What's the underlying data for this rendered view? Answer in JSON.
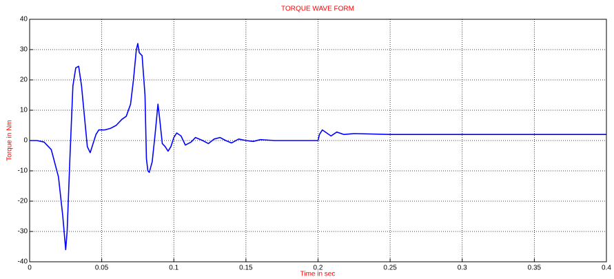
{
  "chart_data": {
    "type": "line",
    "title": "TORQUE WAVE FORM",
    "x_label": "Time in sec",
    "y_label": "Torque in Nm",
    "x": [
      0,
      0.005,
      0.01,
      0.015,
      0.02,
      0.023,
      0.025,
      0.026,
      0.028,
      0.03,
      0.032,
      0.034,
      0.036,
      0.038,
      0.04,
      0.042,
      0.044,
      0.046,
      0.048,
      0.052,
      0.056,
      0.06,
      0.064,
      0.067,
      0.07,
      0.072,
      0.074,
      0.075,
      0.076,
      0.078,
      0.08,
      0.081,
      0.082,
      0.083,
      0.085,
      0.087,
      0.089,
      0.09,
      0.092,
      0.094,
      0.096,
      0.098,
      0.1,
      0.102,
      0.105,
      0.108,
      0.112,
      0.115,
      0.12,
      0.124,
      0.128,
      0.132,
      0.136,
      0.14,
      0.145,
      0.15,
      0.155,
      0.16,
      0.17,
      0.18,
      0.19,
      0.2,
      0.201,
      0.203,
      0.206,
      0.209,
      0.213,
      0.218,
      0.225,
      0.25,
      0.3,
      0.35,
      0.4
    ],
    "values": [
      0,
      0,
      -0.5,
      -3,
      -12,
      -25,
      -36,
      -30,
      -5,
      18,
      24,
      24.5,
      18,
      8,
      -2,
      -4,
      -1,
      2,
      3.5,
      3.5,
      4,
      5,
      7,
      8,
      12,
      20,
      30,
      32,
      29,
      28,
      15,
      -6,
      -10,
      -10.5,
      -7,
      2,
      12,
      8,
      -1,
      -2,
      -3.5,
      -2,
      1,
      2.5,
      1.5,
      -1.5,
      -0.5,
      1,
      0,
      -1,
      0.5,
      1,
      0,
      -0.8,
      0.5,
      0,
      -0.3,
      0.3,
      0,
      0,
      0,
      0,
      2,
      3.5,
      2.5,
      1.5,
      2.8,
      2,
      2.3,
      2,
      2,
      2,
      2
    ],
    "color": "#0000ff",
    "xlim": [
      0,
      0.4
    ],
    "xticks": [
      0,
      0.05,
      0.1,
      0.15,
      0.2,
      0.25,
      0.3,
      0.35,
      0.4
    ],
    "ylim": [
      -40,
      40
    ],
    "yticks": [
      -40,
      -30,
      -20,
      -10,
      0,
      10,
      20,
      30,
      40
    ],
    "grid": true
  }
}
